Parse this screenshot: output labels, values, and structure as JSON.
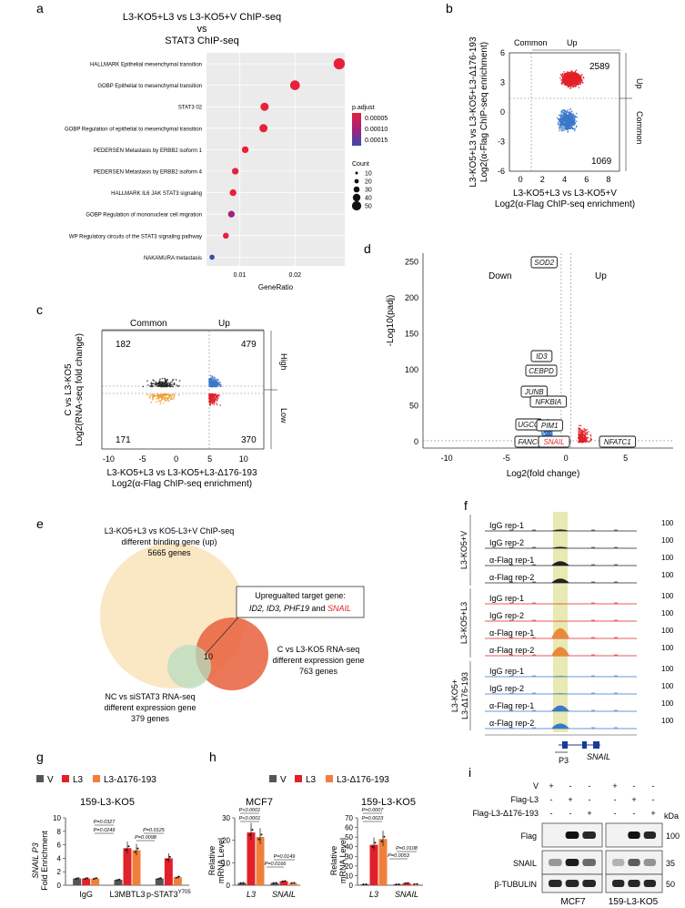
{
  "panel_letters": [
    "a",
    "b",
    "c",
    "d",
    "e",
    "f",
    "g",
    "h",
    "i"
  ],
  "panel_a": {
    "title_lines": [
      "L3-KO5+L3 vs L3-KO5+V ChIP-seq",
      "vs",
      "STAT3 ChIP-seq"
    ],
    "x_label": "GeneRatio",
    "x_ticks": [
      "0.01",
      "0.02"
    ],
    "legend_padj_title": "p.adjust",
    "legend_padj_values": [
      "0.00005",
      "0.00010",
      "0.00015"
    ],
    "legend_count_title": "Count",
    "legend_count_values": [
      "10",
      "20",
      "30",
      "40",
      "50"
    ],
    "chart_data": {
      "type": "scatter",
      "x_label": "GeneRatio",
      "x_range": [
        0.004,
        0.029
      ],
      "terms": [
        {
          "label": "HALLMARK Epithelial mesenchymal transition",
          "gene_ratio": 0.028,
          "padj": 1e-05,
          "count": 50
        },
        {
          "label": "GOBP Epithelial to mesenchymal transition",
          "gene_ratio": 0.02,
          "padj": 2e-05,
          "count": 40
        },
        {
          "label": "STAT3 02",
          "gene_ratio": 0.0145,
          "padj": 2e-05,
          "count": 30
        },
        {
          "label": "GOBP Regulation of epithelial to mesenchymal transition",
          "gene_ratio": 0.0143,
          "padj": 2e-05,
          "count": 30
        },
        {
          "label": "PEDERSEN Metastasis by ERBB2 isoform 1",
          "gene_ratio": 0.011,
          "padj": 3e-05,
          "count": 20
        },
        {
          "label": "PEDERSEN Metastasis by ERBB2 isoform 4",
          "gene_ratio": 0.0092,
          "padj": 3e-05,
          "count": 20
        },
        {
          "label": "HALLMARK IL6 JAK STAT3 signaling",
          "gene_ratio": 0.0088,
          "padj": 5e-05,
          "count": 20
        },
        {
          "label": "GOBP Regulation of  mononuclear cell migration",
          "gene_ratio": 0.0085,
          "padj": 0.00012,
          "count": 20
        },
        {
          "label": "WP Regulatory circuits of the STAT3 signaling pathway",
          "gene_ratio": 0.0075,
          "padj": 6e-05,
          "count": 15
        },
        {
          "label": "NAKAMURA metastasis",
          "gene_ratio": 0.005,
          "padj": 0.00017,
          "count": 10
        }
      ]
    }
  },
  "panel_b": {
    "label_common": "Common",
    "label_up": "Up",
    "side_up": "Up",
    "side_common": "Common",
    "count_up": "2589",
    "count_common": "1069",
    "y_label_1": "L3-KO5+L3 vs L3-KO5+L3-Δ176-193",
    "y_label_2": "Log2(α-Flag ChIP-seq enrichment)",
    "x_label_1": "L3-KO5+L3 vs L3-KO5+V",
    "x_label_2": "Log2(α-Flag ChIP-seq enrichment)",
    "x_ticks": [
      "0",
      "2",
      "4",
      "6",
      "8"
    ],
    "y_ticks": [
      "6",
      "3",
      "0",
      "-3",
      "-6"
    ]
  },
  "panel_c": {
    "label_common": "Common",
    "label_up": "Up",
    "side_high": "High",
    "side_low": "Low",
    "counts": [
      "182",
      "479",
      "171",
      "370"
    ],
    "y_label_1": "C vs L3-KO5",
    "y_label_2": "Log2(RNA-seq fold change)",
    "x_label_1": "L3-KO5+L3 vs L3-KO5+L3-Δ176-193",
    "x_label_2": "Log2(α-Flag ChIP-seq enrichment)",
    "x_ticks": [
      "-10",
      "-5",
      "0",
      "5",
      "10"
    ]
  },
  "panel_d": {
    "label_down": "Down",
    "label_up": "Up",
    "y_label": "-Log10(padj)",
    "x_label": "Log2(fold change)",
    "x_ticks": [
      "-10",
      "-5",
      "0",
      "5"
    ],
    "y_ticks": [
      "250",
      "200",
      "150",
      "100",
      "50",
      "0"
    ],
    "genes": [
      {
        "name": "SOD2",
        "fc": 1.0,
        "p": 250
      },
      {
        "name": "ID3",
        "fc": 0.8,
        "p": 112
      },
      {
        "name": "CEBPD",
        "fc": 0.4,
        "p": 98
      },
      {
        "name": "JUNB",
        "fc": -0.6,
        "p": 68
      },
      {
        "name": "NFKBIA",
        "fc": 0.9,
        "p": 57
      },
      {
        "name": "UGCG",
        "fc": -1.0,
        "p": 30
      },
      {
        "name": "PIM1",
        "fc": 1.5,
        "p": 28
      },
      {
        "name": "FANCC",
        "fc": -0.9,
        "p": 5
      },
      {
        "name": "SNAIL",
        "fc": 1.2,
        "p": 5
      },
      {
        "name": "NFATC1",
        "fc": 6.8,
        "p": 5
      }
    ]
  },
  "panel_e": {
    "set1_lines": [
      "L3-KO5+L3 vs KO5-L3+V ChIP-seq",
      "different binding gene (up)",
      "5665 genes"
    ],
    "set2_lines": [
      "C vs L3-KO5 RNA-seq",
      "different expression gene",
      "763 genes"
    ],
    "set3_lines": [
      "NC vs siSTAT3 RNA-seq",
      "different expression gene",
      "379 genes"
    ],
    "overlap_count": "10",
    "callout_line1": "Upregualted target gene:",
    "callout_genes": "ID2, ID3, PHF19",
    "callout_and": " and ",
    "callout_snail": "SNAIL"
  },
  "panel_f": {
    "groups": [
      "L3-KO5+V",
      "L3-KO5+L3",
      "L3-KO5+"
    ],
    "group3_line2": "L3-Δ176-193",
    "tracks": [
      "IgG rep-1",
      "IgG rep-2",
      "α-Flag rep-1",
      "α-Flag rep-2"
    ],
    "scale": "100",
    "peak_label": "P3",
    "gene_label": "SNAIL"
  },
  "panel_g": {
    "legend": [
      "V",
      "L3",
      "L3-Δ176-193"
    ],
    "title": "159-L3-KO5",
    "y_label_1": "SNAIL P3",
    "y_label_2": "Fold Enrichment",
    "y_ticks": [
      "0",
      "2",
      "4",
      "6",
      "8",
      "10"
    ],
    "groups": [
      "IgG",
      "L3MBTL3",
      "p-STAT3"
    ],
    "y705": "Y705",
    "pvalues": [
      "P=0.0327",
      "P=0.0249",
      "P=0.0098",
      "P=0.0125"
    ],
    "chart_data": {
      "type": "bar",
      "categories": [
        "IgG",
        "L3MBTL3",
        "p-STAT3Y705"
      ],
      "series": [
        {
          "name": "V",
          "values": [
            1.0,
            0.8,
            1.0
          ]
        },
        {
          "name": "L3",
          "values": [
            1.0,
            5.5,
            4.0
          ]
        },
        {
          "name": "L3-Δ176-193",
          "values": [
            1.0,
            5.2,
            1.2
          ]
        }
      ],
      "ylim": [
        0,
        10
      ]
    }
  },
  "panel_h": {
    "legend": [
      "V",
      "L3",
      "L3-Δ176-193"
    ],
    "left_title": "MCF7",
    "right_title": "159-L3-KO5",
    "y_label_1": "Relative",
    "y_label_2": "mRNA Level",
    "left_y_ticks": [
      "0",
      "10",
      "20",
      "30"
    ],
    "right_y_ticks": [
      "0",
      "10",
      "20",
      "30",
      "40",
      "50",
      "60",
      "70"
    ],
    "categories": [
      "L3",
      "SNAIL"
    ],
    "left_pvalues": [
      "P<0.0001",
      "P<0.0001",
      "P=0.0149",
      "P=0.0166"
    ],
    "right_pvalues": [
      "P=0.0007",
      "P=0.0023",
      "P=0.0108",
      "P=0.0053"
    ],
    "chart_data": [
      {
        "type": "bar",
        "title": "MCF7",
        "categories": [
          "L3",
          "SNAIL"
        ],
        "series": [
          {
            "name": "V",
            "values": [
              1.0,
              1.0
            ]
          },
          {
            "name": "L3",
            "values": [
              23.5,
              1.8
            ]
          },
          {
            "name": "L3-Δ176-193",
            "values": [
              21.5,
              1.0
            ]
          }
        ],
        "ylim": [
          0,
          30
        ]
      },
      {
        "type": "bar",
        "title": "159-L3-KO5",
        "categories": [
          "L3",
          "SNAIL"
        ],
        "series": [
          {
            "name": "V",
            "values": [
              1.0,
              1.0
            ]
          },
          {
            "name": "L3",
            "values": [
              42.0,
              2.2
            ]
          },
          {
            "name": "L3-Δ176-193",
            "values": [
              48.0,
              1.2
            ]
          }
        ],
        "ylim": [
          0,
          70
        ]
      }
    ]
  },
  "panel_i": {
    "row_labels": [
      "V",
      "Flag-L3",
      "Flag-L3-Δ176-193"
    ],
    "signs": [
      "+",
      "-",
      "-",
      "-",
      "+",
      "-",
      "-",
      "-",
      "+"
    ],
    "kda": "kDa",
    "blots": [
      "Flag",
      "SNAIL",
      "β-TUBULIN"
    ],
    "markers": [
      "100",
      "35",
      "50"
    ],
    "cells": [
      "MCF7",
      "159-L3-KO5"
    ]
  },
  "colors": {
    "V": "#555555",
    "L3": "#e2202a",
    "D176": "#f07f3c",
    "blue": "#3a78c9"
  }
}
